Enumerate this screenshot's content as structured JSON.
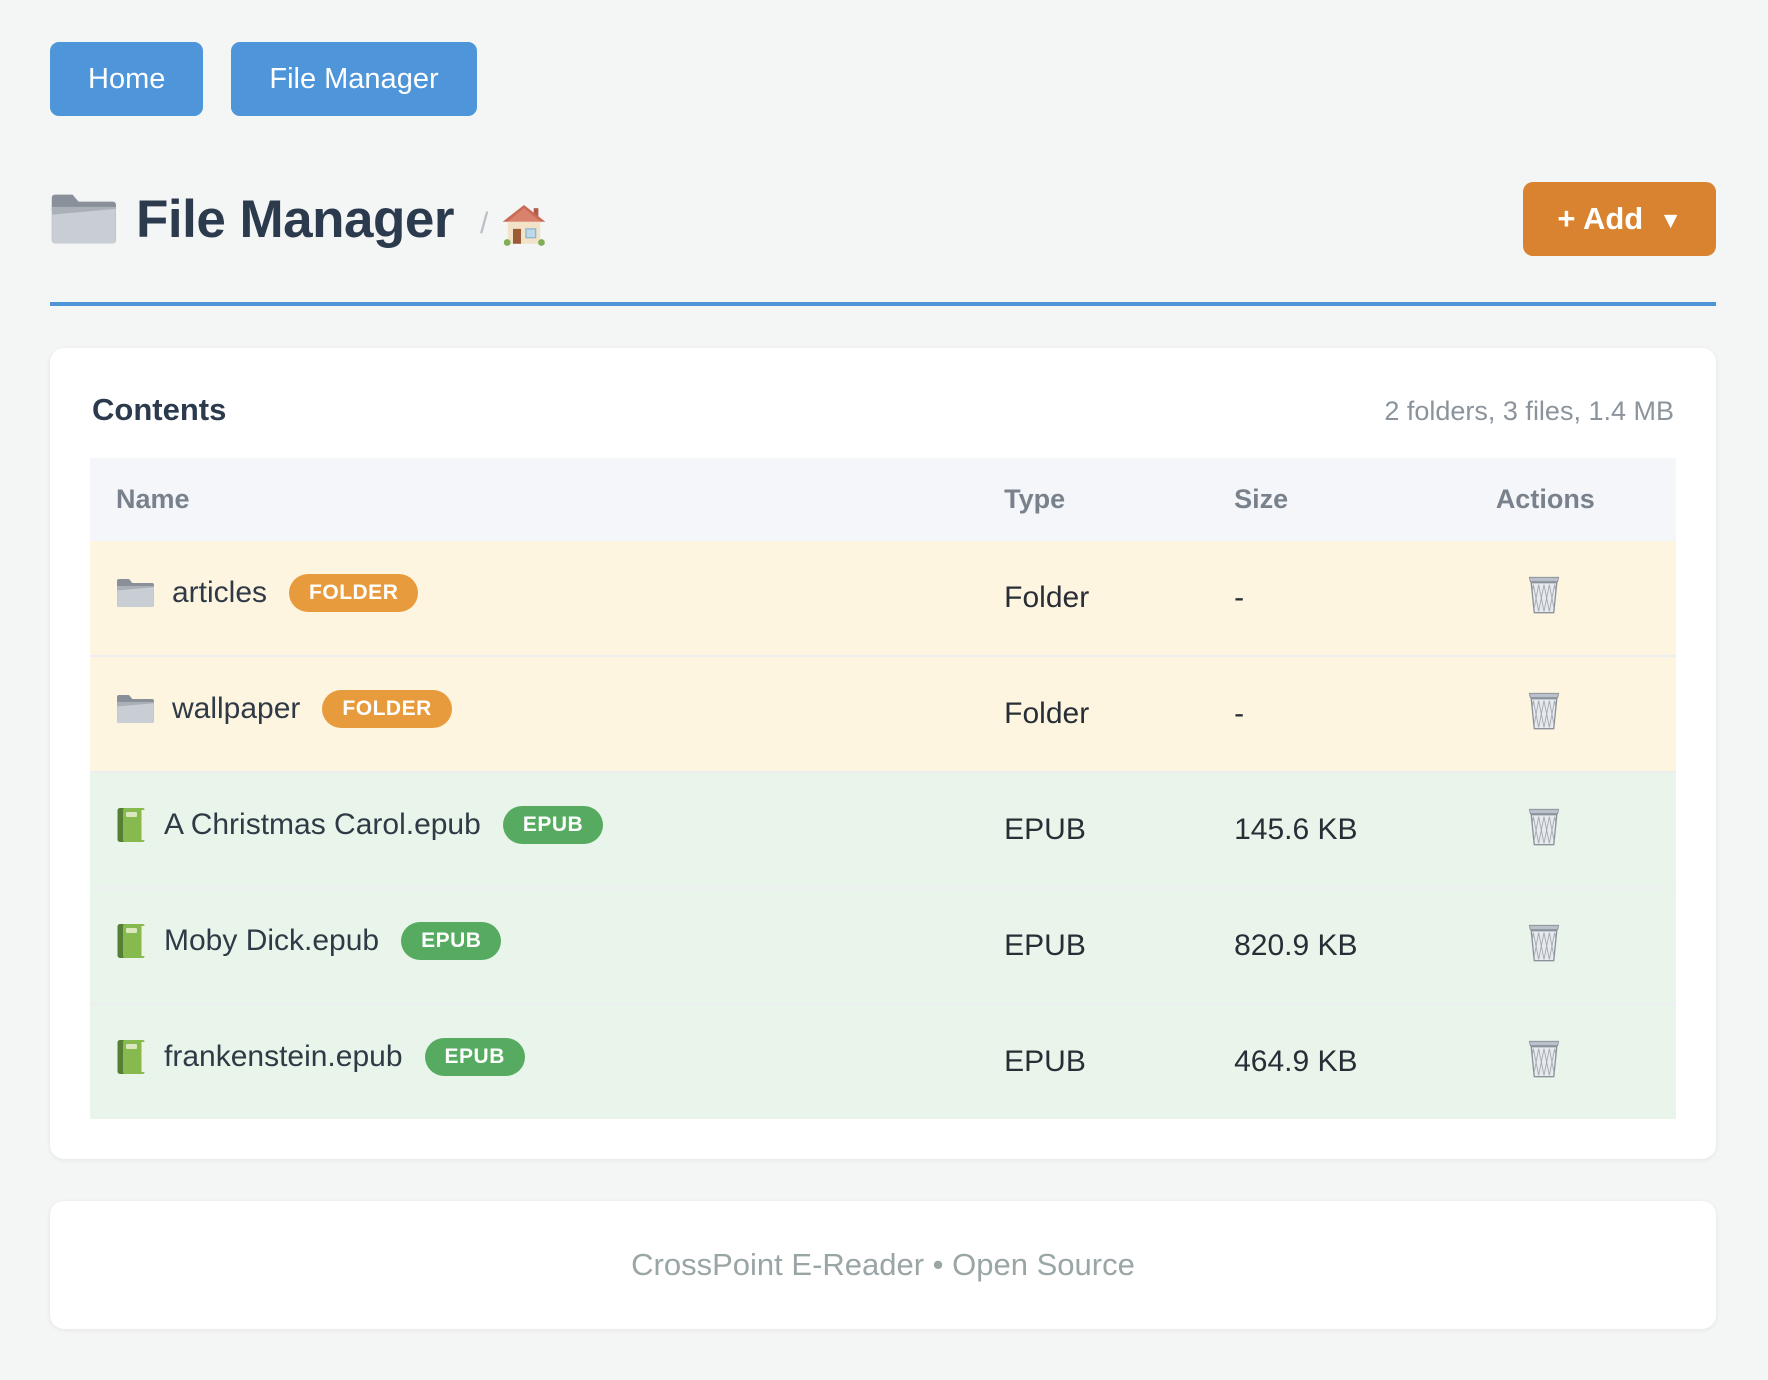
{
  "nav": {
    "items": [
      {
        "label": "Home"
      },
      {
        "label": "File Manager"
      }
    ]
  },
  "header": {
    "title": "File Manager",
    "title_icon": "folder-icon",
    "breadcrumb_separator": "/",
    "breadcrumb_home_icon": "house-icon",
    "add_button": {
      "label": "+ Add",
      "caret": "▼"
    }
  },
  "contents": {
    "title": "Contents",
    "summary": "2 folders, 3 files, 1.4 MB",
    "columns": [
      "Name",
      "Type",
      "Size",
      "Actions"
    ],
    "rows": [
      {
        "name": "articles",
        "badge": "FOLDER",
        "kind": "folder",
        "type": "Folder",
        "size": "-",
        "icon": "folder-icon",
        "action_icon": "trash-icon"
      },
      {
        "name": "wallpaper",
        "badge": "FOLDER",
        "kind": "folder",
        "type": "Folder",
        "size": "-",
        "icon": "folder-icon",
        "action_icon": "trash-icon"
      },
      {
        "name": "A Christmas Carol.epub",
        "badge": "EPUB",
        "kind": "epub",
        "type": "EPUB",
        "size": "145.6 KB",
        "icon": "book-icon",
        "action_icon": "trash-icon"
      },
      {
        "name": "Moby Dick.epub",
        "badge": "EPUB",
        "kind": "epub",
        "type": "EPUB",
        "size": "820.9 KB",
        "icon": "book-icon",
        "action_icon": "trash-icon"
      },
      {
        "name": "frankenstein.epub",
        "badge": "EPUB",
        "kind": "epub",
        "type": "EPUB",
        "size": "464.9 KB",
        "icon": "book-icon",
        "action_icon": "trash-icon"
      }
    ]
  },
  "footer": {
    "text": "CrossPoint E-Reader • Open Source"
  },
  "colors": {
    "accent_blue": "#4e95d9",
    "add_button_orange": "#d9822f",
    "badge_orange": "#e89b3d",
    "badge_green": "#57ab60",
    "folder_row_bg": "#fdf5e0",
    "epub_row_bg": "#e9f4ea",
    "title_text": "#2c3a4d"
  }
}
